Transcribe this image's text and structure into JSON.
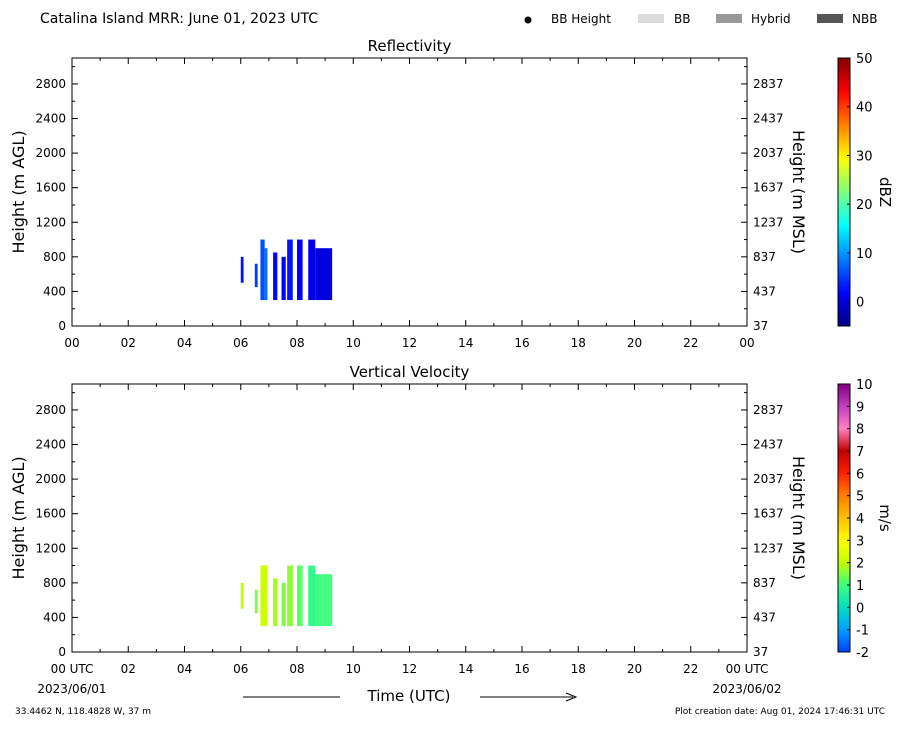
{
  "header": {
    "title": "Catalina Island MRR:  June 01, 2023 UTC",
    "legend": [
      {
        "label": "BB Height",
        "kind": "dot",
        "color": "#000000"
      },
      {
        "label": "BB",
        "kind": "swatch",
        "color": "#dcdcdc"
      },
      {
        "label": "Hybrid",
        "kind": "swatch",
        "color": "#999999"
      },
      {
        "label": "NBB",
        "kind": "swatch",
        "color": "#555555"
      }
    ]
  },
  "footer": {
    "location": "33.4462 N, 118.4828 W, 37 m",
    "creation": "Plot creation date: Aug 01, 2024 17:46:31 UTC",
    "time_axis_label": "Time (UTC)",
    "start_date": "2023/06/01",
    "end_date": "2023/06/02"
  },
  "chart_data": [
    {
      "type": "heatmap",
      "title": "Reflectivity",
      "ylabel": "Height (m AGL)",
      "ylabel_right": "Height (m MSL)",
      "xlim": [
        0,
        24
      ],
      "ylim": [
        0,
        3100
      ],
      "x_ticks": [
        "00",
        "02",
        "04",
        "06",
        "08",
        "10",
        "12",
        "14",
        "16",
        "18",
        "20",
        "22",
        "00"
      ],
      "y_ticks": [
        0,
        400,
        800,
        1200,
        1600,
        2000,
        2400,
        2800
      ],
      "y_ticks_right": [
        37,
        437,
        837,
        1237,
        1637,
        2037,
        2437,
        2837
      ],
      "colorbar": {
        "label": "dBZ",
        "range": [
          -5,
          50
        ],
        "ticks": [
          0,
          10,
          20,
          30,
          40,
          50
        ],
        "colors": [
          "#00007f",
          "#0000ff",
          "#0080ff",
          "#00ffff",
          "#80ff80",
          "#ffff00",
          "#ff8000",
          "#ff0000",
          "#7f0000"
        ]
      },
      "cells": [
        {
          "x0": 6.0,
          "x1": 6.1,
          "y0": 500,
          "y1": 800,
          "value": 3
        },
        {
          "x0": 6.5,
          "x1": 6.6,
          "y0": 450,
          "y1": 720,
          "value": 5
        },
        {
          "x0": 6.7,
          "x1": 6.85,
          "y0": 300,
          "y1": 1000,
          "value": 6
        },
        {
          "x0": 6.85,
          "x1": 6.95,
          "y0": 300,
          "y1": 900,
          "value": 8
        },
        {
          "x0": 7.15,
          "x1": 7.3,
          "y0": 300,
          "y1": 850,
          "value": 2
        },
        {
          "x0": 7.45,
          "x1": 7.6,
          "y0": 300,
          "y1": 800,
          "value": 2
        },
        {
          "x0": 7.65,
          "x1": 7.85,
          "y0": 300,
          "y1": 1000,
          "value": 3
        },
        {
          "x0": 8.0,
          "x1": 8.2,
          "y0": 300,
          "y1": 1000,
          "value": 2
        },
        {
          "x0": 8.4,
          "x1": 8.65,
          "y0": 300,
          "y1": 1000,
          "value": 1
        },
        {
          "x0": 8.65,
          "x1": 9.25,
          "y0": 300,
          "y1": 900,
          "value": 0
        }
      ]
    },
    {
      "type": "heatmap",
      "title": "Vertical Velocity",
      "ylabel": "Height (m AGL)",
      "ylabel_right": "Height (m MSL)",
      "xlim": [
        0,
        24
      ],
      "ylim": [
        0,
        3100
      ],
      "x_ticks": [
        "00 UTC",
        "02",
        "04",
        "06",
        "08",
        "10",
        "12",
        "14",
        "16",
        "18",
        "20",
        "22",
        "00 UTC"
      ],
      "y_ticks": [
        0,
        400,
        800,
        1200,
        1600,
        2000,
        2400,
        2800
      ],
      "y_ticks_right": [
        37,
        437,
        837,
        1237,
        1637,
        2037,
        2437,
        2837
      ],
      "colorbar": {
        "label": "m/s",
        "range": [
          -2,
          10
        ],
        "ticks": [
          -2,
          -1,
          0,
          1,
          2,
          3,
          4,
          5,
          6,
          7,
          8,
          9,
          10
        ],
        "colors": [
          "#0040ff",
          "#00a0ff",
          "#00e0c0",
          "#40ff80",
          "#c0ff00",
          "#ffff00",
          "#ffc000",
          "#ff8000",
          "#ff2000",
          "#c00000",
          "#ff80c0",
          "#c040c0",
          "#800080"
        ]
      },
      "cells": [
        {
          "x0": 6.0,
          "x1": 6.1,
          "y0": 500,
          "y1": 800,
          "value": 2
        },
        {
          "x0": 6.5,
          "x1": 6.6,
          "y0": 450,
          "y1": 720,
          "value": 1.5
        },
        {
          "x0": 6.7,
          "x1": 6.95,
          "y0": 300,
          "y1": 1000,
          "value": 2.2
        },
        {
          "x0": 7.15,
          "x1": 7.3,
          "y0": 300,
          "y1": 850,
          "value": 1.8
        },
        {
          "x0": 7.45,
          "x1": 7.6,
          "y0": 300,
          "y1": 800,
          "value": 1.5
        },
        {
          "x0": 7.65,
          "x1": 7.85,
          "y0": 300,
          "y1": 1000,
          "value": 1.6
        },
        {
          "x0": 8.0,
          "x1": 8.2,
          "y0": 300,
          "y1": 1000,
          "value": 1.2
        },
        {
          "x0": 8.4,
          "x1": 8.65,
          "y0": 300,
          "y1": 1000,
          "value": 0.8
        },
        {
          "x0": 8.65,
          "x1": 9.25,
          "y0": 300,
          "y1": 900,
          "value": 1.0
        }
      ]
    }
  ]
}
